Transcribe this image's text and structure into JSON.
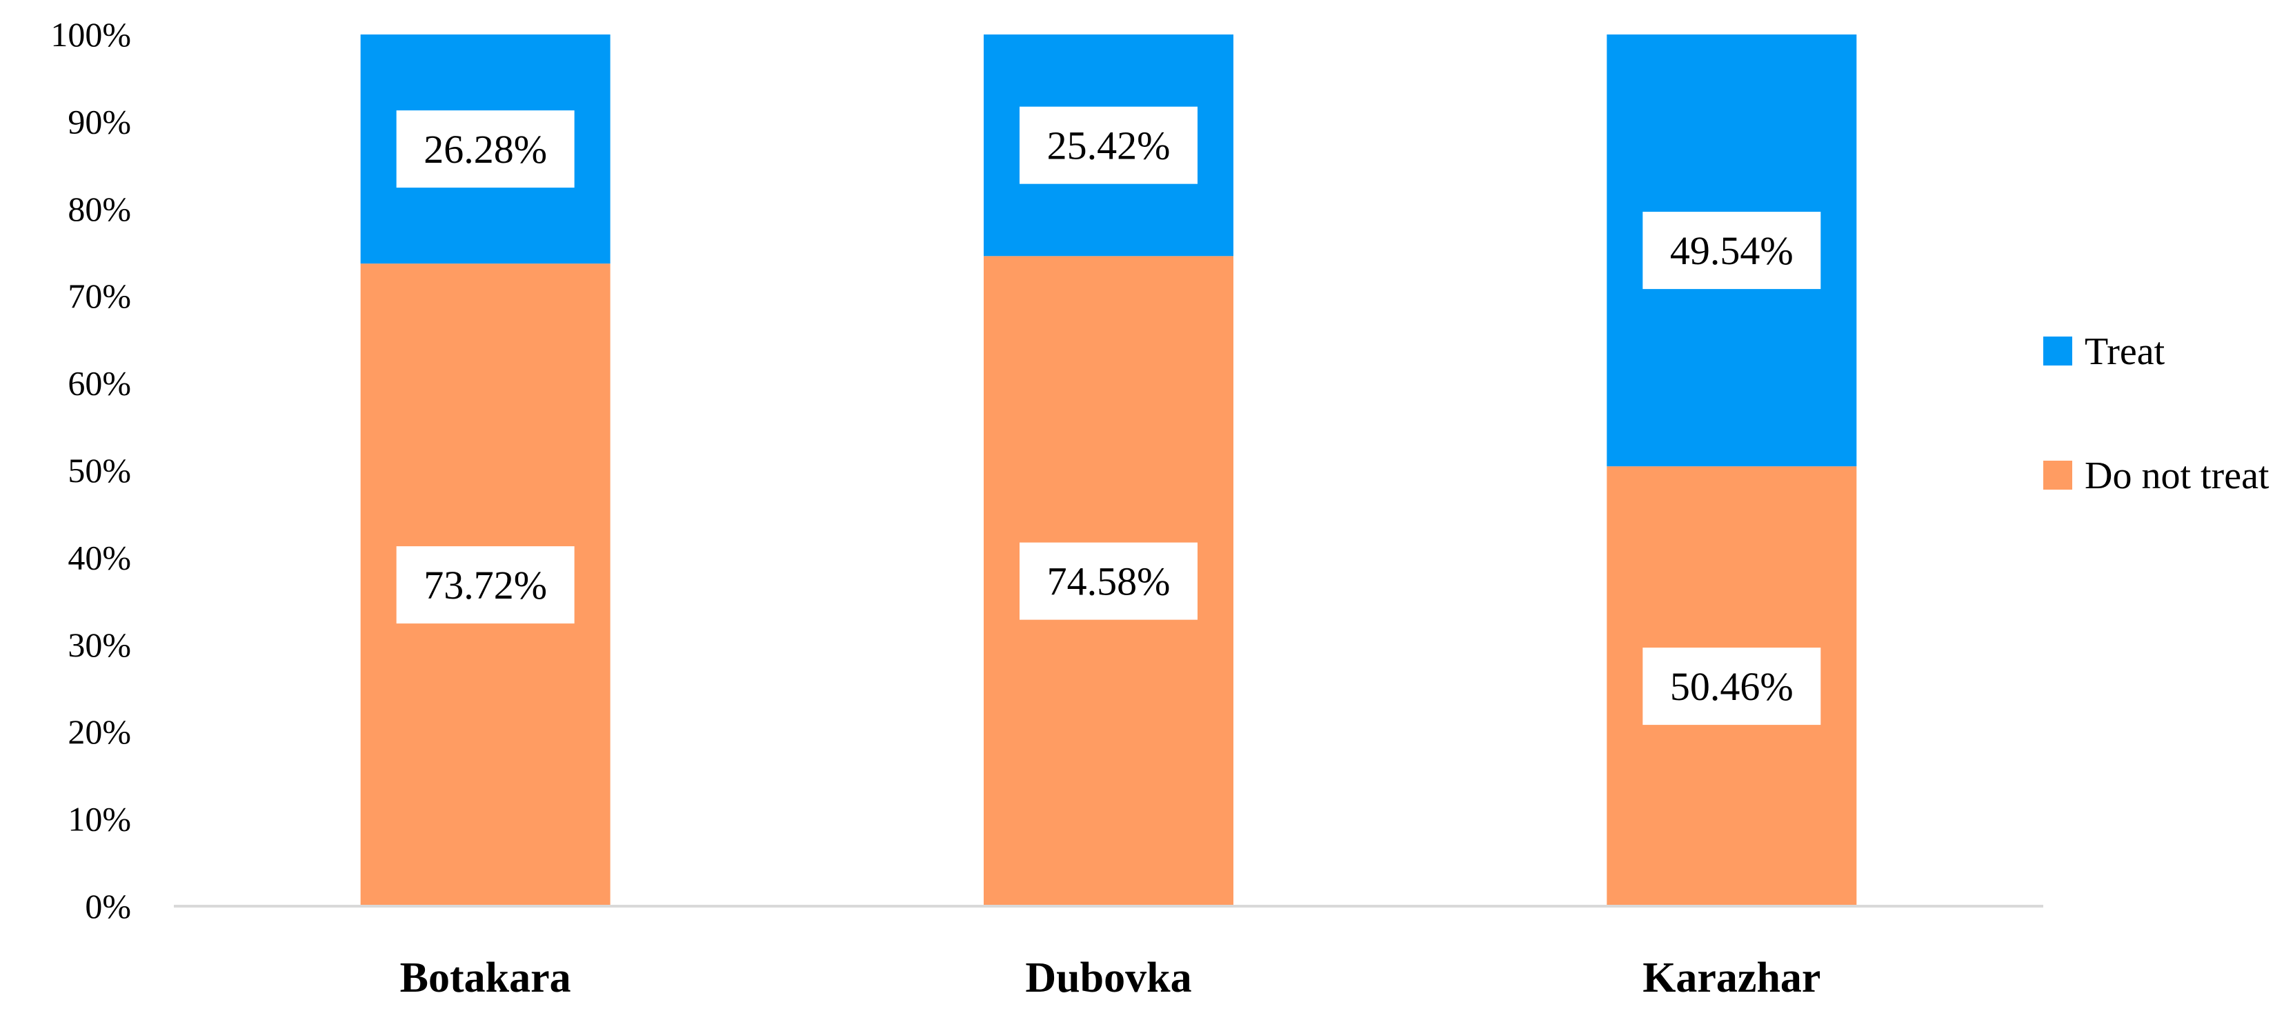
{
  "chart_data": {
    "type": "bar",
    "stacked": true,
    "categories": [
      "Botakara",
      "Dubovka",
      "Karazhar"
    ],
    "series": [
      {
        "name": "Do not treat",
        "color": "#ff9c62",
        "values": [
          73.72,
          74.58,
          50.46
        ],
        "labels": [
          "73.72%",
          "74.58%",
          "50.46%"
        ]
      },
      {
        "name": "Treat",
        "color": "#0099f7",
        "values": [
          26.28,
          25.42,
          49.54
        ],
        "labels": [
          "26.28%",
          "25.42%",
          "49.54%"
        ]
      }
    ],
    "y_ticks": [
      "0%",
      "10%",
      "20%",
      "30%",
      "40%",
      "50%",
      "60%",
      "70%",
      "80%",
      "90%",
      "100%"
    ],
    "ylim": [
      0,
      100
    ],
    "grid": false,
    "legend": {
      "position": "right",
      "order": [
        "Treat",
        "Do not treat"
      ]
    }
  }
}
